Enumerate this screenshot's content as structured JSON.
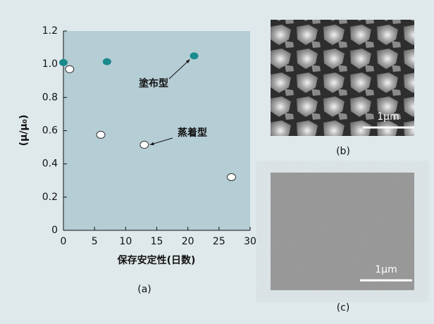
{
  "chart_data": {
    "type": "scatter",
    "xlabel": "保存安定性(日数)",
    "ylabel": "(μ/μ₀)",
    "xlim": [
      0,
      30
    ],
    "ylim": [
      0,
      1.2
    ],
    "xticks": [
      0,
      5,
      10,
      15,
      20,
      25,
      30
    ],
    "yticks": [
      0,
      0.2,
      0.4,
      0.6,
      0.8,
      {
        "value": 1,
        "label": "1.0"
      },
      1.2
    ],
    "series": [
      {
        "name": "塗布型",
        "color": "#1a8a8c",
        "x": [
          0,
          7,
          21
        ],
        "values": [
          1.01,
          1.015,
          1.05
        ]
      },
      {
        "name": "蒸着型",
        "color": "#ffffff",
        "x": [
          1,
          6,
          13,
          27
        ],
        "values": [
          0.97,
          0.575,
          0.515,
          0.32
        ]
      }
    ],
    "panel_label": "(a)"
  },
  "panels": [
    {
      "label": "(b)",
      "scale": "1μm"
    },
    {
      "label": "(c)",
      "scale": "1μm"
    }
  ]
}
